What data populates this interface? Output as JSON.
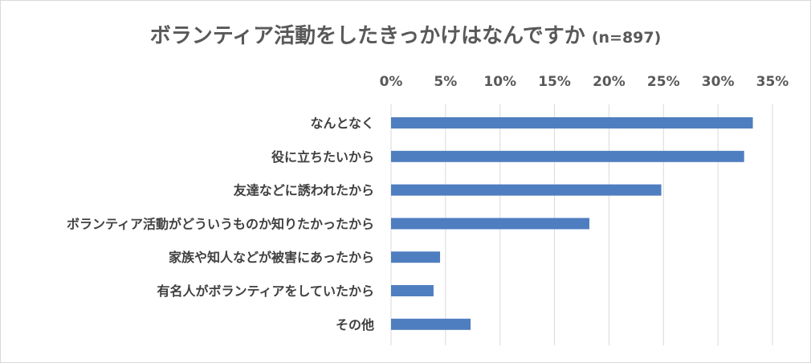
{
  "chart_data": {
    "type": "bar",
    "orientation": "horizontal",
    "title": "ボランティア活動をしたきっかけはなんですか",
    "subtitle": "(n=897)",
    "categories": [
      "なんとなく",
      "役に立ちたいから",
      "友達などに誘われたから",
      "ボランティア活動がどういうものか知りたかったから",
      "家族や知人などが被害にあったから",
      "有名人がボランティアをしていたから",
      "その他"
    ],
    "values": [
      33.2,
      32.4,
      24.8,
      18.2,
      4.5,
      3.9,
      7.3
    ],
    "xlim": [
      0,
      35
    ],
    "x_ticks": [
      "0%",
      "5%",
      "10%",
      "15%",
      "20%",
      "25%",
      "30%",
      "35%"
    ],
    "x_axis_position": "top",
    "grid": true,
    "legend": "none",
    "bar_color": "#4f7ec0",
    "grid_color": "#d9d9d9"
  }
}
